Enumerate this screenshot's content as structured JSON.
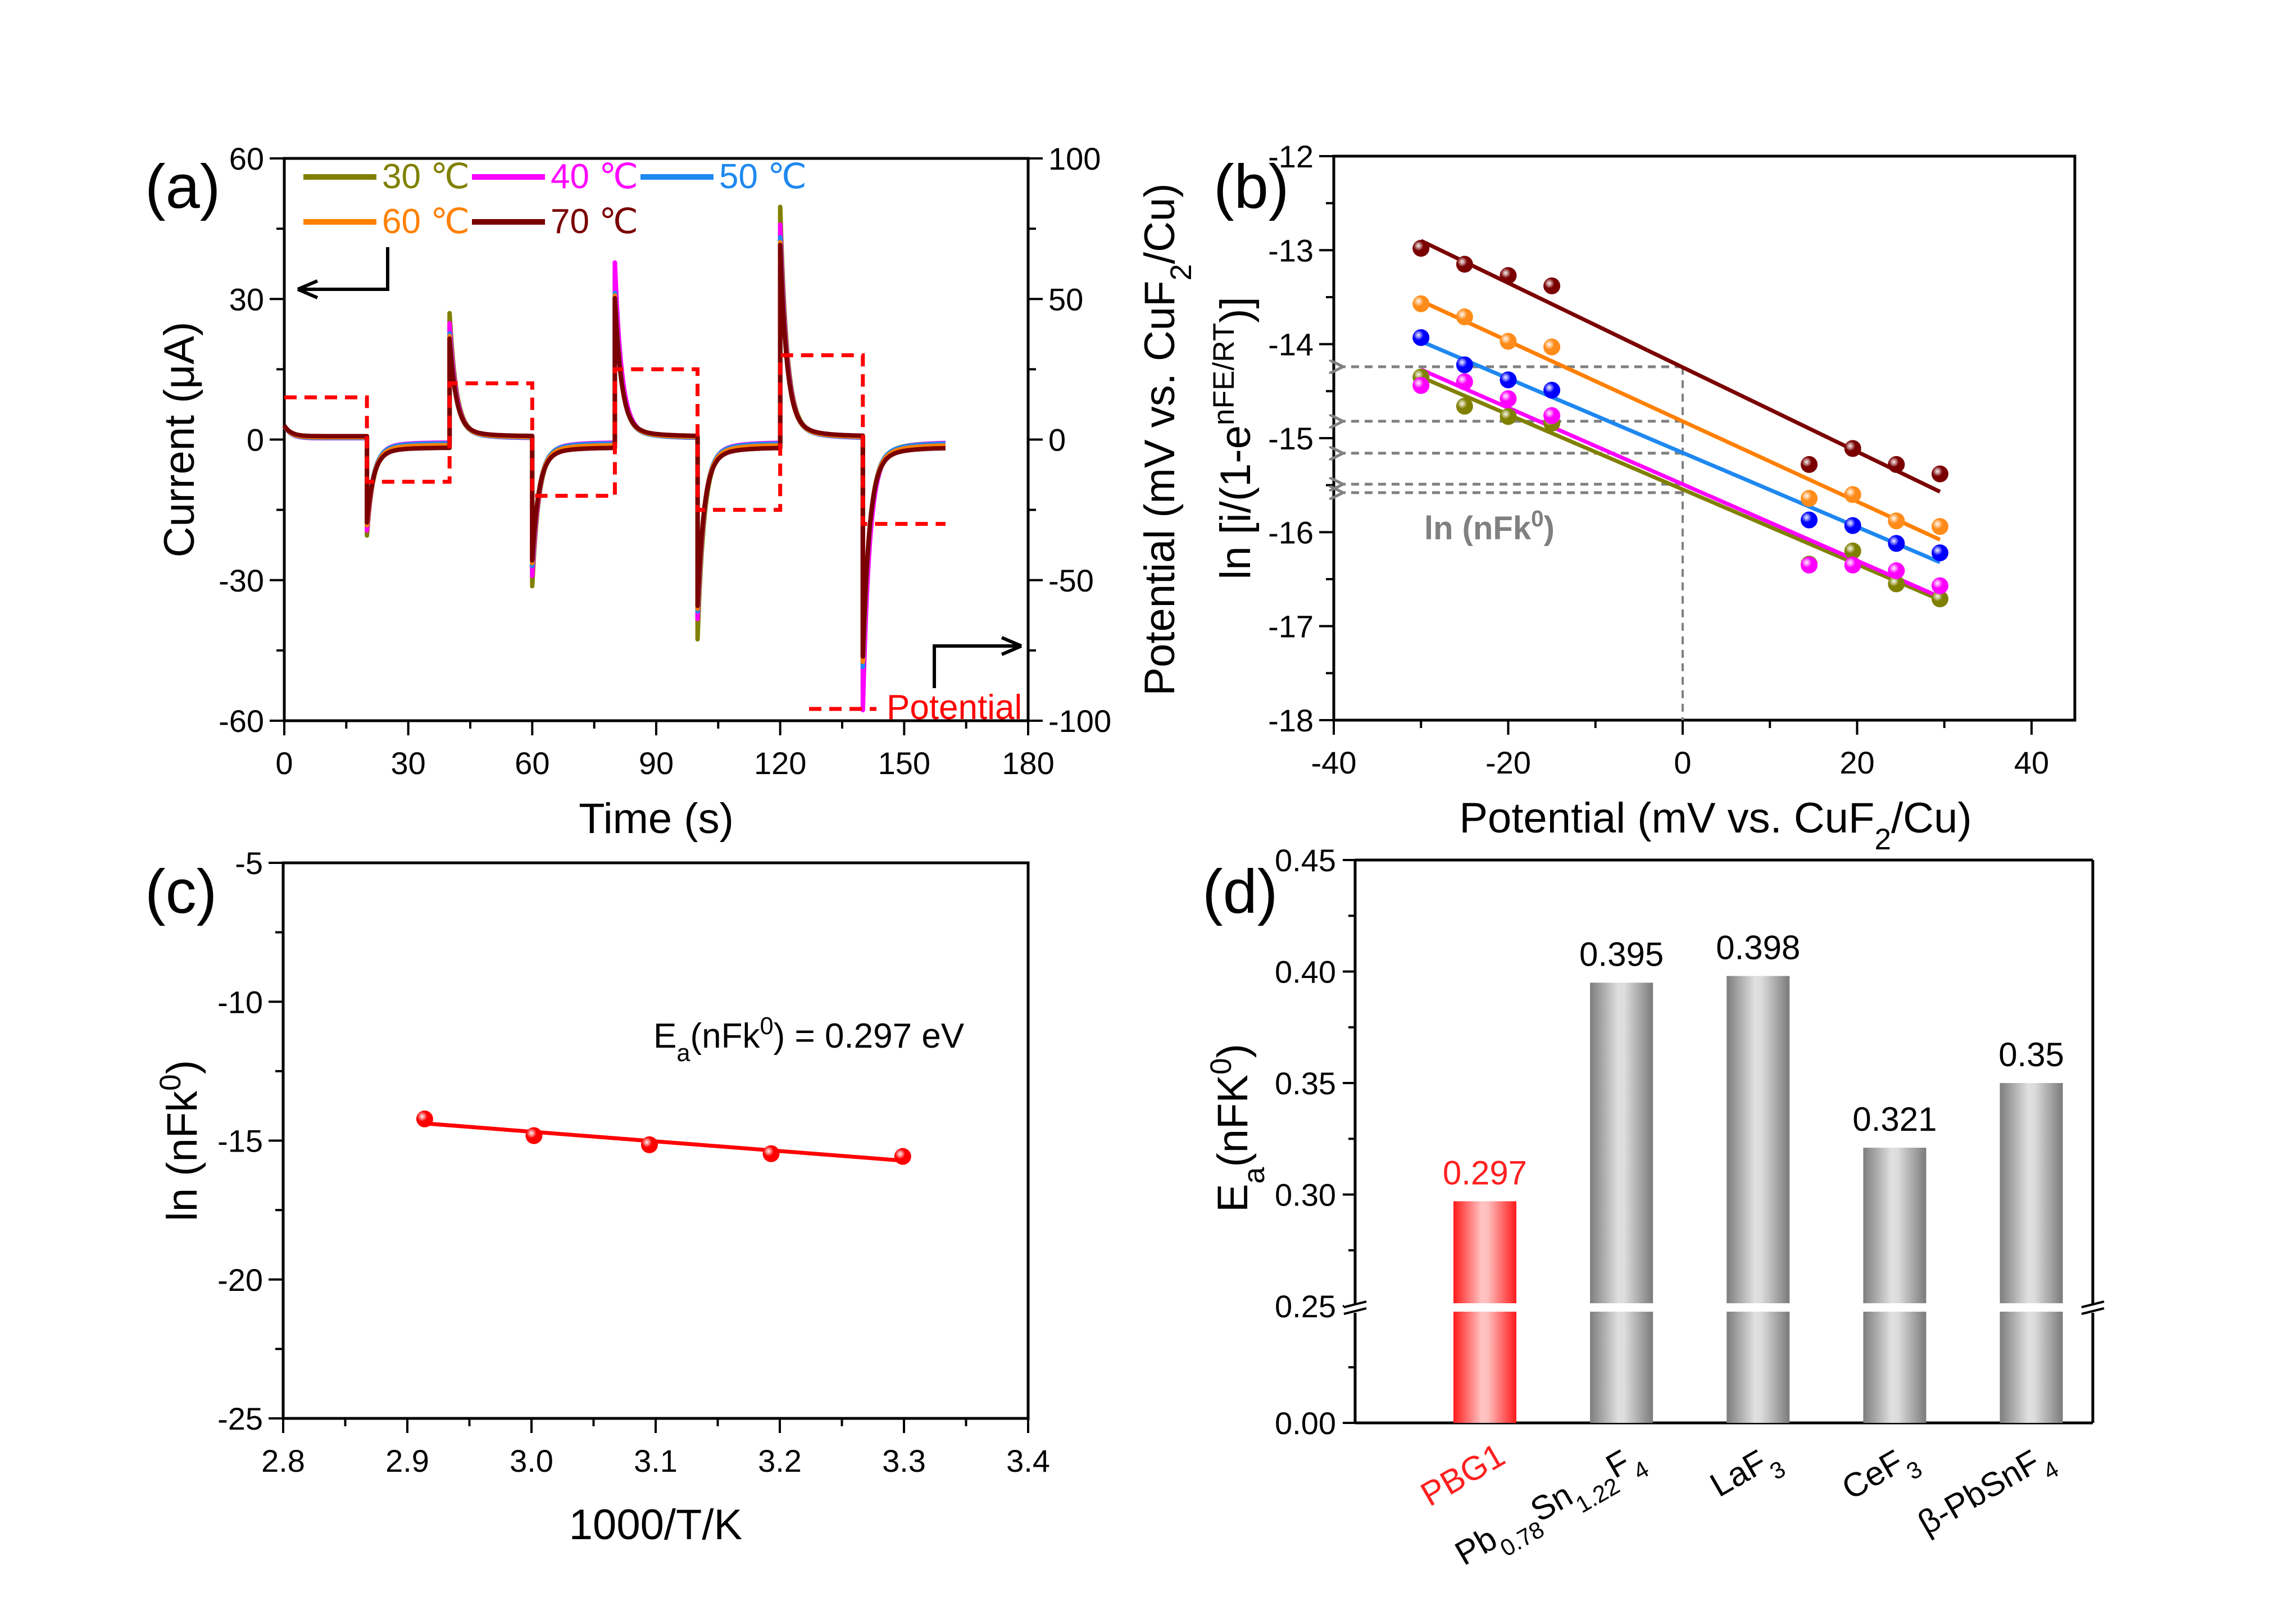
{
  "chart_data": [
    {
      "panel": "(a)",
      "type": "line",
      "xlabel": "Time (s)",
      "ylabel": "Current (μA)",
      "y2label": "Potential (mV vs. CuF2/Cu)",
      "y2label_parts": {
        "main": "Potential (mV vs. CuF",
        "sub": "2",
        "tail": "/Cu)"
      },
      "xlim": [
        0,
        180
      ],
      "ylim": [
        -60,
        60
      ],
      "y2lim": [
        -100,
        100
      ],
      "xticks": [
        0,
        30,
        60,
        90,
        120,
        150,
        180
      ],
      "yticks": [
        -60,
        -30,
        0,
        30,
        60
      ],
      "y2ticks": [
        -100,
        -50,
        0,
        50,
        100
      ],
      "grid": false,
      "legend_position": "top-left",
      "step_duration_s": 20,
      "total_time_s": 160,
      "potential_series": {
        "name": "Potential",
        "color": "#ff0000",
        "style": "dashed",
        "axis": "right",
        "steps": [
          {
            "t_start": 0,
            "t_end": 20,
            "value": 15
          },
          {
            "t_start": 20,
            "t_end": 40,
            "value": -15
          },
          {
            "t_start": 40,
            "t_end": 60,
            "value": 20
          },
          {
            "t_start": 60,
            "t_end": 80,
            "value": -20
          },
          {
            "t_start": 80,
            "t_end": 100,
            "value": 25
          },
          {
            "t_start": 100,
            "t_end": 120,
            "value": -25
          },
          {
            "t_start": 120,
            "t_end": 140,
            "value": 30
          },
          {
            "t_start": 140,
            "t_end": 160,
            "value": -30
          }
        ]
      },
      "series": [
        {
          "name": "30 ℃",
          "color": "#808000",
          "baseline_offset": 0.0,
          "spikes": [
            {
              "t": 0,
              "peak": 3
            },
            {
              "t": 20,
              "peak": -19
            },
            {
              "t": 40,
              "peak": 25
            },
            {
              "t": 60,
              "peak": -29
            },
            {
              "t": 80,
              "peak": 33
            },
            {
              "t": 100,
              "peak": -39.5
            },
            {
              "t": 120,
              "peak": 46
            },
            {
              "t": 140,
              "peak": -50
            }
          ]
        },
        {
          "name": "40 ℃",
          "color": "#ff00ff",
          "baseline_offset": 0.0,
          "spikes": [
            {
              "t": 0,
              "peak": 3
            },
            {
              "t": 20,
              "peak": -18
            },
            {
              "t": 40,
              "peak": 23
            },
            {
              "t": 60,
              "peak": -27
            },
            {
              "t": 80,
              "peak": 35
            },
            {
              "t": 100,
              "peak": -35.5
            },
            {
              "t": 120,
              "peak": 42.5
            },
            {
              "t": 140,
              "peak": -53.5
            }
          ]
        },
        {
          "name": "50 ℃",
          "color": "#1e88f0",
          "baseline_offset": 0.1,
          "spikes": [
            {
              "t": 0,
              "peak": 3
            },
            {
              "t": 20,
              "peak": -17
            },
            {
              "t": 40,
              "peak": 21
            },
            {
              "t": 60,
              "peak": -25
            },
            {
              "t": 80,
              "peak": 29
            },
            {
              "t": 100,
              "peak": -34
            },
            {
              "t": 120,
              "peak": 40
            },
            {
              "t": 140,
              "peak": -45
            }
          ]
        },
        {
          "name": "60 ℃",
          "color": "#ff8000",
          "baseline_offset": 0.35,
          "spikes": [
            {
              "t": 0,
              "peak": 3
            },
            {
              "t": 20,
              "peak": -17
            },
            {
              "t": 40,
              "peak": 20.5
            },
            {
              "t": 60,
              "peak": -24.5
            },
            {
              "t": 80,
              "peak": 28.5
            },
            {
              "t": 100,
              "peak": -33.5
            },
            {
              "t": 120,
              "peak": 39
            },
            {
              "t": 140,
              "peak": -44
            }
          ]
        },
        {
          "name": "70 ℃",
          "color": "#7a0000",
          "baseline_offset": 0.7,
          "spikes": [
            {
              "t": 0,
              "peak": 3
            },
            {
              "t": 20,
              "peak": -16.5
            },
            {
              "t": 40,
              "peak": 20
            },
            {
              "t": 60,
              "peak": -24
            },
            {
              "t": 80,
              "peak": 28
            },
            {
              "t": 100,
              "peak": -33
            },
            {
              "t": 120,
              "peak": 38.5
            },
            {
              "t": 140,
              "peak": -43
            }
          ]
        }
      ],
      "annotations": [
        "Potential"
      ]
    },
    {
      "panel": "(b)",
      "type": "scatter",
      "xlabel": "Potential (mV vs. CuF2/Cu)",
      "xlabel_parts": {
        "main": "Potential (mV vs. CuF",
        "sub": "2",
        "tail": "/Cu)"
      },
      "ylabel": "ln [i/(1-e^(nFE/RT))]",
      "ylabel_parts": {
        "main": "ln [i/(1-e",
        "sup": "nFE/RT",
        "tail": ")]"
      },
      "xlim": [
        -40,
        45
      ],
      "ylim": [
        -18,
        -12
      ],
      "xticks": [
        -40,
        -20,
        0,
        20,
        40
      ],
      "yticks": [
        -18,
        -17,
        -16,
        -15,
        -14,
        -13,
        -12
      ],
      "grid": false,
      "x": [
        -30,
        -25,
        -20,
        -15,
        14.5,
        19.5,
        24.5,
        29.5
      ],
      "series": [
        {
          "name": "30 ℃",
          "color": "#808000",
          "marker_color": "#808000",
          "values": [
            -14.35,
            -14.66,
            -14.77,
            -14.84,
            -16.34,
            -16.2,
            -16.55,
            -16.71
          ],
          "fit": {
            "x0": -30,
            "y0": -14.35,
            "x1": 29.5,
            "y1": -16.72
          },
          "intercept": -15.58
        },
        {
          "name": "40 ℃",
          "color": "#ff00ff",
          "marker_color": "#ff00ff",
          "values": [
            -14.44,
            -14.4,
            -14.58,
            -14.76,
            -16.35,
            -16.35,
            -16.41,
            -16.57
          ],
          "fit": {
            "x0": -30,
            "y0": -14.27,
            "x1": 29.5,
            "y1": -16.69
          },
          "intercept": -15.49
        },
        {
          "name": "50 ℃",
          "color": "#1e88f0",
          "marker_color": "#0000ff",
          "values": [
            -13.93,
            -14.22,
            -14.38,
            -14.49,
            -15.87,
            -15.93,
            -16.12,
            -16.22
          ],
          "fit": {
            "x0": -30,
            "y0": -13.97,
            "x1": 29.5,
            "y1": -16.32
          },
          "intercept": -15.16
        },
        {
          "name": "60 ℃",
          "color": "#ff8000",
          "marker_color": "#ff8c1a",
          "values": [
            -13.57,
            -13.71,
            -13.97,
            -14.03,
            -15.64,
            -15.6,
            -15.88,
            -15.94
          ],
          "fit": {
            "x0": -30,
            "y0": -13.54,
            "x1": 29.5,
            "y1": -16.08
          },
          "intercept": -14.82
        },
        {
          "name": "70 ℃",
          "color": "#7a0000",
          "marker_color": "#7a0000",
          "values": [
            -12.98,
            -13.15,
            -13.27,
            -13.38,
            -15.28,
            -15.11,
            -15.28,
            -15.38
          ],
          "fit": {
            "x0": -30,
            "y0": -12.9,
            "x1": 29.5,
            "y1": -15.57
          },
          "intercept": -14.24
        }
      ],
      "annotation": {
        "main": "ln (nFk",
        "sup": "0",
        "tail": ")"
      },
      "guide_color": "#808080"
    },
    {
      "panel": "(c)",
      "type": "scatter",
      "xlabel": "1000/T/K",
      "ylabel": "ln (nFk^0)",
      "ylabel_parts": {
        "main": "ln (nFk",
        "sup": "0",
        "tail": ")"
      },
      "xlim": [
        2.8,
        3.4
      ],
      "ylim": [
        -25,
        -5
      ],
      "xticks": [
        2.8,
        2.9,
        3.0,
        3.1,
        3.2,
        3.3,
        3.4
      ],
      "xtick_labels": [
        "2.8",
        "2.9",
        "3.0",
        "3.1",
        "3.2",
        "3.3",
        "3.4"
      ],
      "yticks": [
        -25,
        -20,
        -15,
        -10,
        -5
      ],
      "grid": false,
      "x": [
        2.914,
        3.002,
        3.095,
        3.193,
        3.299
      ],
      "values": [
        -14.22,
        -14.82,
        -15.15,
        -15.47,
        -15.57
      ],
      "fit": {
        "x0": 2.914,
        "y0": -14.38,
        "x1": 3.299,
        "y1": -15.72
      },
      "color": "#ff0000",
      "annotation": {
        "pre": "E",
        "sub": "a",
        "mid": "(nFk",
        "sup": "0",
        "tail": ") = 0.297 eV"
      }
    },
    {
      "panel": "(d)",
      "type": "bar",
      "ylabel": "Ea(nFK^0)",
      "ylabel_parts": {
        "pre": "E",
        "sub": "a",
        "mid": "(nFK",
        "sup": "0",
        "tail": ")"
      },
      "ylim_upper": [
        0.25,
        0.45
      ],
      "ylim_lower": [
        0.0,
        0.25
      ],
      "axis_break_at": 0.25,
      "yticks": [
        0.0,
        0.25,
        0.3,
        0.35,
        0.4,
        0.45
      ],
      "ytick_labels": [
        "0.00",
        "0.25",
        "0.30",
        "0.35",
        "0.40",
        "0.45"
      ],
      "grid": false,
      "categories": [
        {
          "label": "PBG1",
          "parts": [
            {
              "t": "PBG1"
            }
          ],
          "highlight": true
        },
        {
          "label": "Pb0.78Sn1.22F4",
          "parts": [
            {
              "t": "Pb"
            },
            {
              "t": "0.78",
              "sub": true
            },
            {
              "t": "Sn"
            },
            {
              "t": "1.22",
              "sub": true
            },
            {
              "t": "F"
            },
            {
              "t": "4",
              "sub": true
            }
          ],
          "highlight": false
        },
        {
          "label": "LaF3",
          "parts": [
            {
              "t": "LaF"
            },
            {
              "t": "3",
              "sub": true
            }
          ],
          "highlight": false
        },
        {
          "label": "CeF3",
          "parts": [
            {
              "t": "CeF"
            },
            {
              "t": "3",
              "sub": true
            }
          ],
          "highlight": false
        },
        {
          "label": "β-PbSnF4",
          "parts": [
            {
              "t": "β-PbSnF"
            },
            {
              "t": "4",
              "sub": true
            }
          ],
          "highlight": false
        }
      ],
      "values": [
        0.297,
        0.395,
        0.398,
        0.321,
        0.35
      ],
      "value_labels": [
        "0.297",
        "0.395",
        "0.398",
        "0.321",
        "0.35"
      ],
      "colors": {
        "highlight": "#ff2020",
        "default": "#8c8c8c"
      }
    }
  ],
  "labels": {
    "panel_a": "(a)",
    "panel_b": "(b)",
    "panel_c": "(c)",
    "panel_d": "(d)",
    "degree_symbol": "℃"
  }
}
